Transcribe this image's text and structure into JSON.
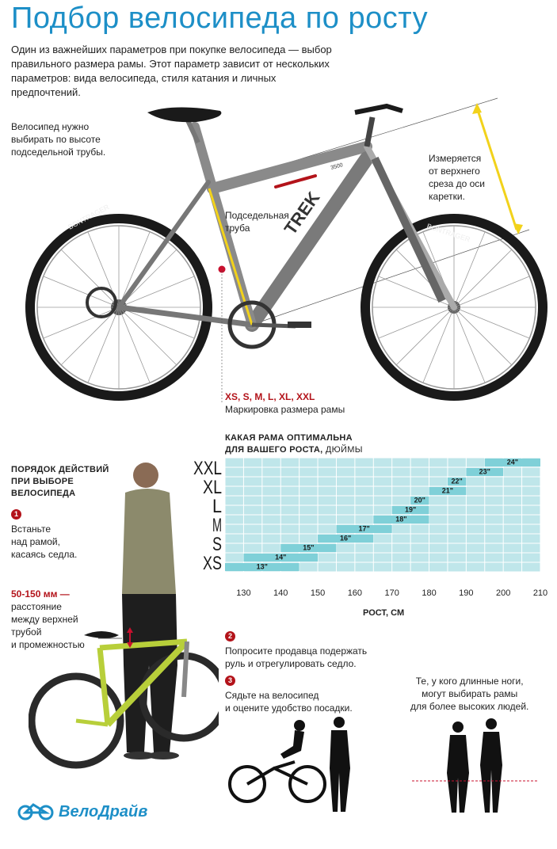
{
  "title": "Подбор велосипеда по росту",
  "intro": "Один из важнейших параметров при покупке велосипеда — выбор правильного размера рамы. Этот параметр зависит от нескольких параметров: вида велосипеда, стиля катания и личных предпочтений.",
  "bike_notes": {
    "seat_tube_note": [
      "Велосипед нужно",
      "выбирать по высоте",
      "подседельной трубы."
    ],
    "seat_tube_label": [
      "Подседельная",
      "труба"
    ],
    "measure_note": [
      "Измеряется",
      "от верхнего",
      "среза до оси",
      "каретки."
    ],
    "sizes": "XS, S, M, L, XL, XXL",
    "marking": "Маркировка размера рамы"
  },
  "bike_branding": {
    "tire_brand": "BONTRAGER",
    "frame_brand": "TREK",
    "frame_model": "3500"
  },
  "chart_title": {
    "line1": "КАКАЯ РАМА ОПТИМАЛЬНА",
    "line2": "ДЛЯ ВАШЕГО РОСТА,",
    "unit": "ДЮЙМЫ"
  },
  "xaxis_title": "РОСТ, СМ",
  "steps": {
    "title": [
      "ПОРЯДОК ДЕЙСТВИЙ",
      "ПРИ ВЫБОРЕ",
      "ВЕЛОСИПЕДА"
    ],
    "step1_num": "1",
    "step1": [
      "Встаньте",
      "над рамой,",
      "касаясь седла."
    ],
    "gap_value": "50-150 мм —",
    "gap_text": [
      "расстояние",
      "между верхней",
      "трубой",
      "и промежностью"
    ],
    "step2_num": "2",
    "step2": [
      "Попросите продавца подержать",
      "руль и отрегулировать седло."
    ],
    "step3_num": "3",
    "step3": [
      "Сядьте на велосипед",
      "и оцените удобство посадки."
    ],
    "legs_note": [
      "Те, у кого длинные ноги,",
      "могут выбирать рамы",
      "для более высоких людей."
    ]
  },
  "logo": "ВелоДрайв",
  "colors": {
    "accent_blue": "#1d8fc7",
    "accent_red": "#b3131a",
    "grid_fill": "#bfe6ea",
    "bar_fill": "#7fd0d8",
    "measure_yellow": "#f2d21b",
    "frame_lime": "#b8cf3a"
  },
  "chart_data": {
    "type": "bar",
    "orientation": "horizontal-range",
    "title": "КАКАЯ РАМА ОПТИМАЛЬНА ДЛЯ ВАШЕГО РОСТА, ДЮЙМЫ",
    "xlabel": "РОСТ, СМ",
    "ylabel": "",
    "xlim": [
      125,
      210
    ],
    "x_ticks": [
      130,
      140,
      150,
      160,
      170,
      180,
      190,
      200,
      210
    ],
    "size_labels": [
      "XS",
      "S",
      "M",
      "L",
      "XL",
      "XXL"
    ],
    "grid": true,
    "bars": [
      {
        "label": "13\"",
        "size": "XS",
        "start": 125,
        "end": 145
      },
      {
        "label": "14\"",
        "size": "XS",
        "start": 130,
        "end": 150
      },
      {
        "label": "15\"",
        "size": "S",
        "start": 140,
        "end": 155
      },
      {
        "label": "16\"",
        "size": "S",
        "start": 150,
        "end": 165
      },
      {
        "label": "17\"",
        "size": "M",
        "start": 155,
        "end": 170
      },
      {
        "label": "18\"",
        "size": "M",
        "start": 165,
        "end": 180
      },
      {
        "label": "19\"",
        "size": "L",
        "start": 170,
        "end": 180
      },
      {
        "label": "20\"",
        "size": "L",
        "start": 175,
        "end": 180
      },
      {
        "label": "21\"",
        "size": "XL",
        "start": 180,
        "end": 190
      },
      {
        "label": "22\"",
        "size": "XL",
        "start": 185,
        "end": 190
      },
      {
        "label": "23\"",
        "size": "XXL",
        "start": 190,
        "end": 200
      },
      {
        "label": "24\"",
        "size": "XXL",
        "start": 195,
        "end": 210
      }
    ]
  }
}
